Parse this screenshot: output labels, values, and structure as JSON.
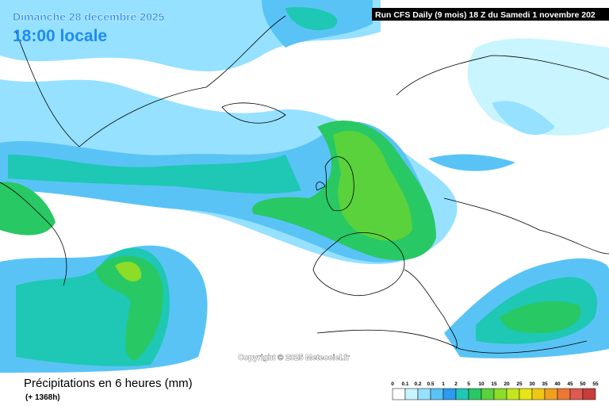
{
  "header": {
    "date": "Dimanche 28 décembre 2025",
    "time": "18:00 locale",
    "run": "Run CFS Daily (9 mois) 18 Z du Samedi 1 novembre 202"
  },
  "copyright": "Copyright © 2025 Meteociel.fr",
  "footer": {
    "title": "Précipitations en 6 heures (mm)",
    "lead": "(+ 1368h)"
  },
  "legend": {
    "labels": [
      0,
      0.1,
      0.2,
      0.5,
      1,
      2,
      5,
      10,
      15,
      20,
      25,
      30,
      35,
      40,
      45,
      50,
      55
    ],
    "colors": [
      "#ffffff",
      "#c8f5ff",
      "#96e1ff",
      "#5ac3f5",
      "#2d9bf0",
      "#1ec8b4",
      "#28c864",
      "#5ad23c",
      "#8cdc28",
      "#c3e61e",
      "#e6e614",
      "#f0c814",
      "#f0a01e",
      "#eb7832",
      "#dc5a50",
      "#c83c3c"
    ]
  }
}
